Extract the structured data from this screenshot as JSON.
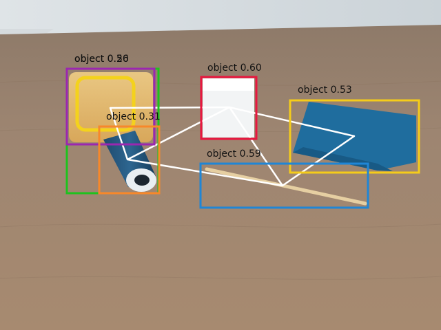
{
  "detections": [
    {
      "label": "object 0.26",
      "color": "#1ec21e"
    },
    {
      "label": "object 0.50",
      "color": "#9b27b0"
    },
    {
      "label": "object 0.31",
      "color": "#f7882a"
    },
    {
      "label": "object 0.60",
      "color": "#e8173f"
    },
    {
      "label": "object 0.53",
      "color": "#f5cc1a"
    },
    {
      "label": "object 0.59",
      "color": "#1f86d6"
    }
  ],
  "trajectory": {
    "color": "#ffffff"
  }
}
